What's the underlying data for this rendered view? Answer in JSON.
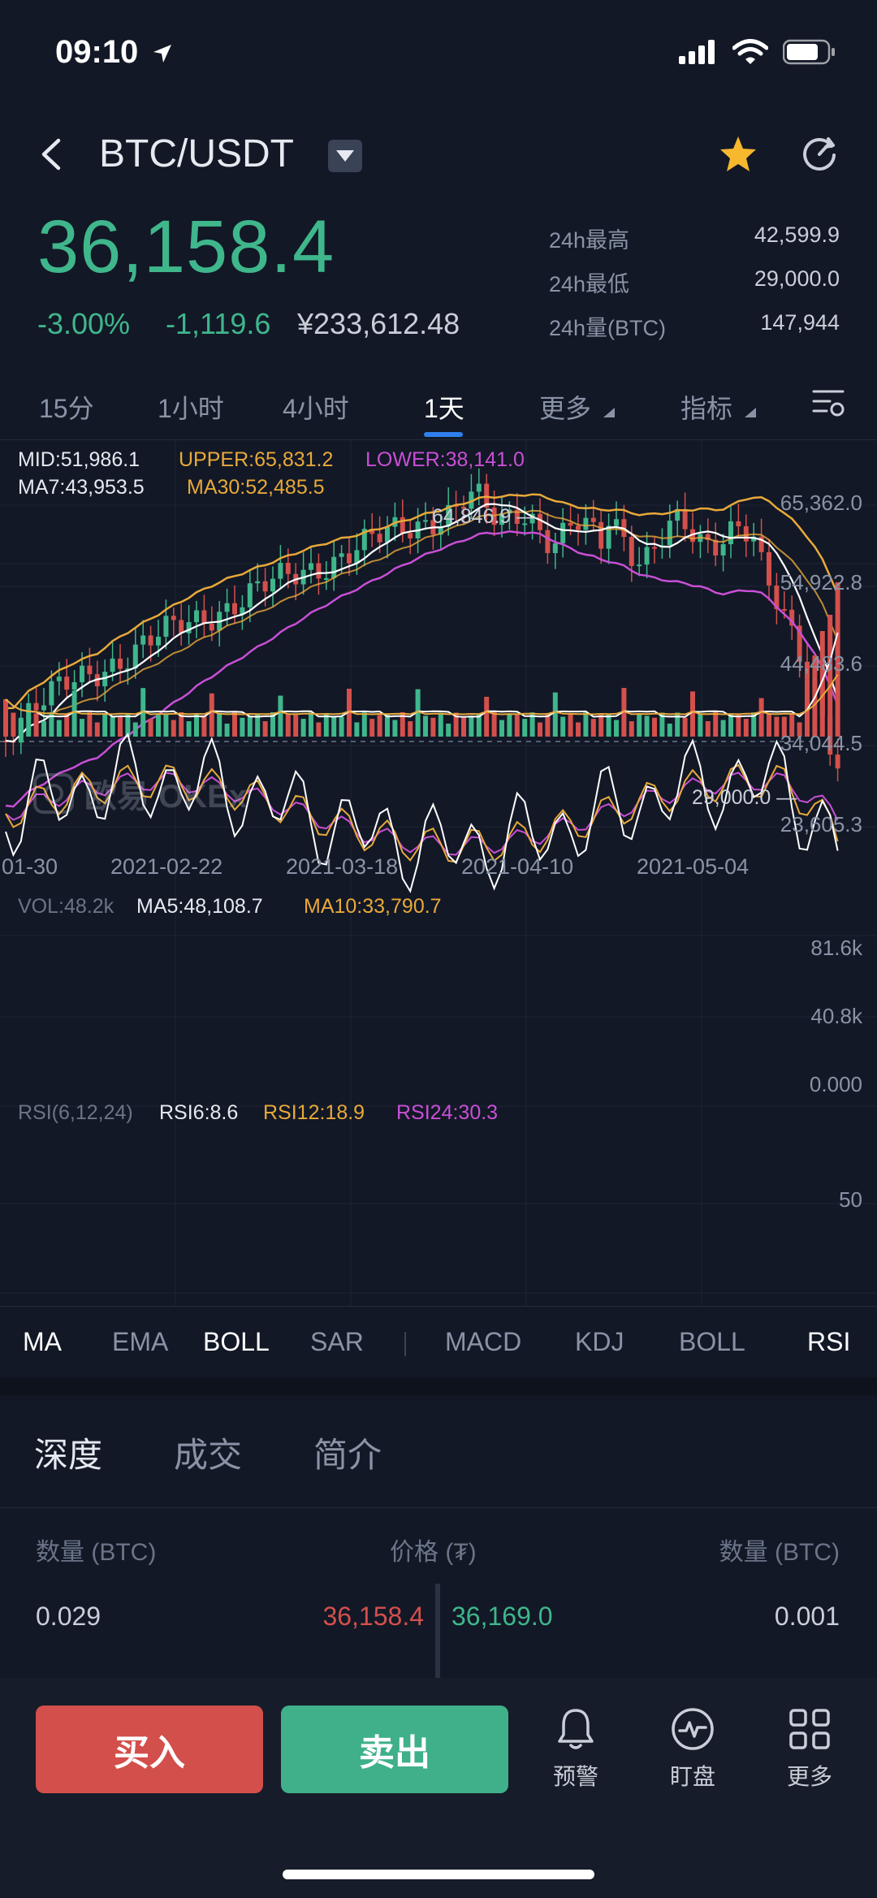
{
  "status_bar": {
    "time": "09:10"
  },
  "header": {
    "pair": "BTC/USDT"
  },
  "ticker": {
    "last_price": "36,158.4",
    "change_pct": "-3.00%",
    "change_abs": "-1,119.6",
    "cny_price": "¥233,612.48",
    "stats": [
      {
        "label": "24h最高",
        "value": "42,599.9"
      },
      {
        "label": "24h最低",
        "value": "29,000.0"
      },
      {
        "label": "24h量(BTC)",
        "value": "147,944"
      }
    ]
  },
  "timeframes": {
    "tabs": [
      "15分",
      "1小时",
      "4小时",
      "1天",
      "更多",
      "指标"
    ],
    "active": "1天"
  },
  "main_chart": {
    "legend_row1": [
      "MID:51,986.1",
      "UPPER:65,831.2",
      "LOWER:38,141.0"
    ],
    "legend_row2": [
      "MA7:43,953.5",
      "MA30:52,485.5"
    ],
    "price_axis": [
      "65,362.0",
      "54,922.8",
      "44,483.6",
      "34,044.5",
      "23,605.3"
    ],
    "high_marker": "64,846.9",
    "low_marker": "29,000.0",
    "watermark": "欧易 OKEx",
    "dates": [
      "01-30",
      "2021-02-22",
      "2021-03-18",
      "2021-04-10",
      "2021-05-04"
    ],
    "colors": {
      "up": "#3FB68B",
      "down": "#D3504C",
      "mid": "#FFFFFF",
      "upper": "#E8A93A",
      "lower": "#C94FD6"
    }
  },
  "volume_chart": {
    "legend": [
      "VOL:48.2k",
      "MA5:48,108.7",
      "MA10:33,790.7"
    ],
    "axis": [
      "81.6k",
      "40.8k",
      "0.000"
    ]
  },
  "rsi_chart": {
    "legend": [
      "RSI(6,12,24)",
      "RSI6:8.6",
      "RSI12:18.9",
      "RSI24:30.3"
    ],
    "axis": [
      "50"
    ]
  },
  "indicator_tabs": [
    "MA",
    "EMA",
    "BOLL",
    "SAR",
    "MACD",
    "KDJ",
    "BOLL",
    "RSI"
  ],
  "sections": {
    "tabs": [
      "深度",
      "成交",
      "简介"
    ],
    "active": "深度"
  },
  "orderbook": {
    "headers": [
      "数量 (BTC)",
      "价格 (₮)",
      "数量 (BTC)"
    ],
    "row": {
      "bid_qty": "0.029",
      "bid_price": "36,158.4",
      "ask_price": "36,169.0",
      "ask_qty": "0.001"
    }
  },
  "bottom": {
    "buy": "买入",
    "sell": "卖出",
    "tools": [
      {
        "label": "预警",
        "icon": "bell-icon"
      },
      {
        "label": "盯盘",
        "icon": "pulse-icon"
      },
      {
        "label": "更多",
        "icon": "grid-icon"
      }
    ]
  }
}
